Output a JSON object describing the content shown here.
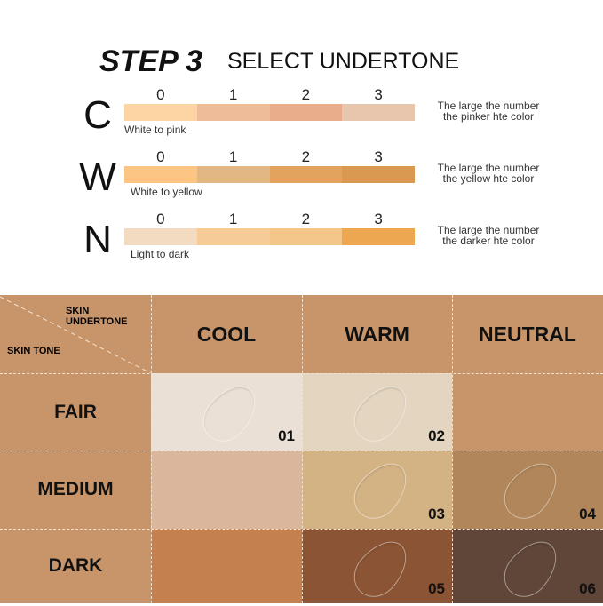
{
  "header": {
    "step": "STEP 3",
    "title": "SELECT UNDERTONE"
  },
  "scales": [
    {
      "letter": "C",
      "numbers": [
        "0",
        "1",
        "2",
        "3"
      ],
      "caption": "White to pink",
      "note1": "The large the number",
      "note2": "the pinker hte color",
      "colors": [
        "#fdd4a4",
        "#eebc98",
        "#eaad8c",
        "#e8c6ad"
      ]
    },
    {
      "letter": "W",
      "numbers": [
        "0",
        "1",
        "2",
        "3"
      ],
      "caption": "White to yellow",
      "note1": "The large the number",
      "note2": "the yellow hte color",
      "colors": [
        "#fdc583",
        "#e2b784",
        "#e1a35d",
        "#da9950"
      ]
    },
    {
      "letter": "N",
      "numbers": [
        "0",
        "1",
        "2",
        "3"
      ],
      "caption": "Light to dark",
      "note1": "The large the number",
      "note2": "the darker hte color",
      "colors": [
        "#f2dbc1",
        "#f6cb97",
        "#f4c68a",
        "#eca750"
      ]
    }
  ],
  "table": {
    "corner_top": "SKIN UNDERTONE",
    "corner_bottom": "SKIN TONE",
    "columns": [
      "COOL",
      "WARM",
      "NEUTRAL"
    ],
    "rows": [
      {
        "label": "FAIR",
        "cells": [
          {
            "shade": "01",
            "color": "#ebe0d5"
          },
          {
            "shade": "02",
            "color": "#e3d5bf"
          },
          {
            "shade": "",
            "color": "#c8956a"
          }
        ]
      },
      {
        "label": "MEDIUM",
        "cells": [
          {
            "shade": "",
            "color": "#dab79c"
          },
          {
            "shade": "03",
            "color": "#d3b284"
          },
          {
            "shade": "04",
            "color": "#b0865a"
          }
        ]
      },
      {
        "label": "DARK",
        "cells": [
          {
            "shade": "",
            "color": "#c58050"
          },
          {
            "shade": "05",
            "color": "#8b5434"
          },
          {
            "shade": "06",
            "color": "#5f4638"
          }
        ]
      }
    ],
    "background": "#c8956a"
  }
}
